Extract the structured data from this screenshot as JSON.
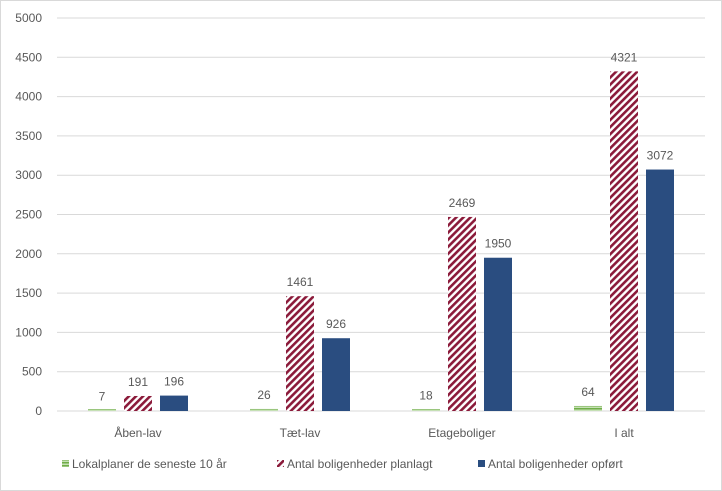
{
  "chart_data": {
    "type": "bar",
    "title": "",
    "xlabel": "",
    "ylabel": "",
    "ylim": [
      0,
      5000
    ],
    "yticks": [
      0,
      500,
      1000,
      1500,
      2000,
      2500,
      3000,
      3500,
      4000,
      4500,
      5000
    ],
    "grid": true,
    "legend_position": "bottom",
    "categories": [
      "Åben-lav",
      "Tæt-lav",
      "Etageboliger",
      "I alt"
    ],
    "series": [
      {
        "name": "Lokalplaner de seneste 10 år",
        "values": [
          7,
          26,
          18,
          64
        ],
        "color": "#70ad47",
        "pattern": "horizontal-lines"
      },
      {
        "name": "Antal boligenheder planlagt",
        "values": [
          191,
          1461,
          2469,
          4321
        ],
        "color": "#8b1a3a",
        "pattern": "diagonal-stripes"
      },
      {
        "name": "Antal boligenheder opført",
        "values": [
          196,
          926,
          1950,
          3072
        ],
        "color": "#2a4d80",
        "pattern": "solid"
      }
    ]
  }
}
